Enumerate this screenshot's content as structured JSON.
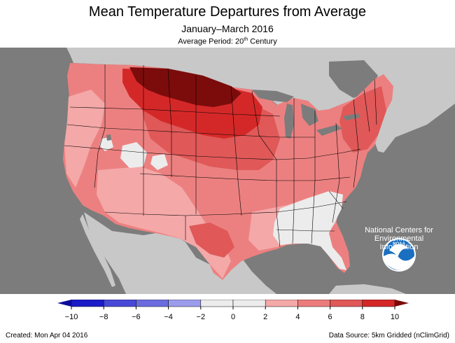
{
  "header": {
    "title": "Mean Temperature Departures from Average",
    "subtitle": "January–March 2016",
    "period_prefix": "Average Period: 20",
    "period_sup": "th",
    "period_suffix": " Century"
  },
  "logo": {
    "icon": "noaa-logo-icon",
    "text": "NOAA",
    "org_line1": "National Centers for",
    "org_line2": "Environmental",
    "org_line3": "Information"
  },
  "legend": {
    "ticks": [
      "−10",
      "−8",
      "−6",
      "−4",
      "−2",
      "0",
      "2",
      "4",
      "6",
      "8",
      "10"
    ],
    "colors": [
      "#1c1cc8",
      "#4848d8",
      "#6c6ce0",
      "#9c9cec",
      "#ececec",
      "#ececec",
      "#f4a8a8",
      "#ec7c7c",
      "#e05858",
      "#d42828"
    ],
    "low_arrow_color": "#0c0c9c",
    "high_arrow_color": "#7c0808"
  },
  "map_colors": {
    "ocean": "#7c7c7c",
    "land_outside": "#c8c8c8",
    "lakes": "#7c7c7c",
    "base_us": "#ec8080",
    "light": "#f4a8a8",
    "medium": "#e05858",
    "dark": "#d42828",
    "darkest": "#7c0c0c",
    "near_normal": "#ececec",
    "state_lines": "#000000"
  },
  "footer": {
    "created": "Created: Mon Apr 04 2016",
    "source": "Data Source: 5km Gridded (nClimGrid)"
  }
}
